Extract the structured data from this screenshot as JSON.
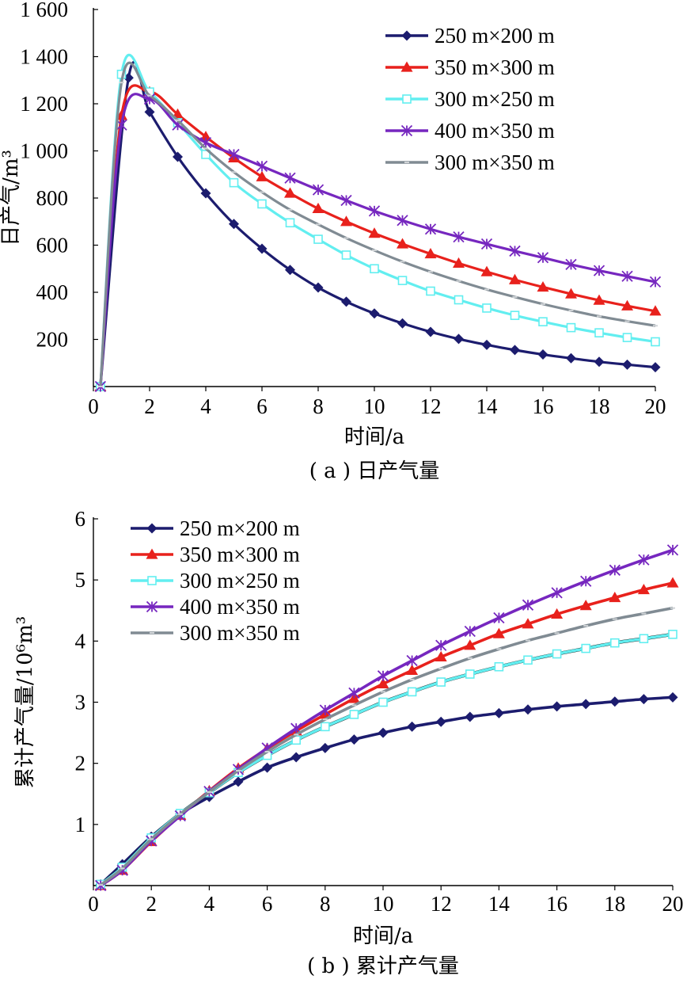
{
  "chart_data": [
    {
      "type": "line",
      "panel": "a",
      "caption": "( a ) 日产气量",
      "xlabel": "时间/a",
      "ylabel": "日产气/m³",
      "xlim": [
        0,
        20
      ],
      "ylim": [
        0,
        1600
      ],
      "xticks": [
        0,
        2,
        4,
        6,
        8,
        10,
        12,
        14,
        16,
        18,
        20
      ],
      "yticks": [
        200,
        400,
        600,
        800,
        1000,
        1200,
        1400,
        1600
      ],
      "ytick_labels": [
        "200",
        "400",
        "600",
        "800",
        "1 000",
        "1 200",
        "1 400",
        "1 600"
      ],
      "legend_position": "top-right",
      "grid": false,
      "series": [
        {
          "name": "250 m×200 m",
          "color": "#1c1c6e",
          "marker": "diamond",
          "x": [
            0.25,
            1.25,
            2,
            3,
            4,
            5,
            6,
            7,
            8,
            9,
            10,
            11,
            12,
            13,
            14,
            15,
            16,
            17,
            18,
            19,
            20
          ],
          "y": [
            0,
            1310,
            1165,
            975,
            820,
            690,
            585,
            495,
            420,
            360,
            310,
            268,
            232,
            202,
            177,
            155,
            136,
            120,
            105,
            93,
            82
          ]
        },
        {
          "name": "350 m×300 m",
          "color": "#e8211c",
          "marker": "triangle",
          "x": [
            0.25,
            1,
            2,
            3,
            4,
            5,
            6,
            7,
            8,
            9,
            10,
            11,
            12,
            13,
            14,
            15,
            16,
            17,
            18,
            19,
            20
          ],
          "y": [
            0,
            1150,
            1250,
            1155,
            1060,
            970,
            890,
            820,
            755,
            700,
            650,
            605,
            563,
            523,
            487,
            453,
            422,
            393,
            366,
            342,
            320
          ]
        },
        {
          "name": "300 m×250 m",
          "color": "#62eef0",
          "marker": "square",
          "x": [
            0.25,
            1,
            2,
            3,
            4,
            5,
            6,
            7,
            8,
            9,
            10,
            11,
            12,
            13,
            14,
            15,
            16,
            17,
            18,
            19,
            20
          ],
          "y": [
            0,
            1325,
            1250,
            1120,
            985,
            865,
            775,
            695,
            625,
            558,
            500,
            450,
            405,
            368,
            333,
            302,
            275,
            250,
            228,
            208,
            190
          ]
        },
        {
          "name": "400 m×350 m",
          "color": "#7627bf",
          "marker": "star",
          "x": [
            0.25,
            1,
            2,
            3,
            4,
            5,
            6,
            7,
            8,
            9,
            10,
            11,
            12,
            13,
            14,
            15,
            16,
            17,
            18,
            19,
            20
          ],
          "y": [
            0,
            1110,
            1220,
            1110,
            1035,
            985,
            935,
            885,
            835,
            790,
            745,
            705,
            668,
            635,
            605,
            575,
            547,
            518,
            492,
            468,
            444
          ]
        },
        {
          "name": "300 m×350 m",
          "color": "#808b93",
          "marker": "dash",
          "x": [
            0.25,
            1,
            2,
            3,
            4,
            5,
            6,
            7,
            8,
            9,
            10,
            11,
            12,
            13,
            14,
            15,
            16,
            17,
            18,
            19,
            20
          ],
          "y": [
            0,
            1290,
            1235,
            1130,
            1010,
            910,
            825,
            750,
            688,
            630,
            578,
            530,
            487,
            448,
            412,
            380,
            350,
            323,
            298,
            277,
            258
          ]
        }
      ]
    },
    {
      "type": "line",
      "panel": "b",
      "caption": "( b ) 累计产气量",
      "xlabel": "时间/a",
      "ylabel": "累计产气量/10⁶m³",
      "xlim": [
        0,
        20
      ],
      "ylim": [
        0,
        6
      ],
      "xticks": [
        0,
        2,
        4,
        6,
        8,
        10,
        12,
        14,
        16,
        18,
        20
      ],
      "yticks": [
        1,
        2,
        3,
        4,
        5,
        6
      ],
      "ytick_labels": [
        "1",
        "2",
        "3",
        "4",
        "5",
        "6"
      ],
      "legend_position": "top-left",
      "grid": false,
      "series": [
        {
          "name": "250 m×200 m",
          "color": "#1c1c6e",
          "marker": "diamond",
          "x": [
            0.25,
            1,
            2,
            3,
            4,
            5,
            6,
            7,
            8,
            9,
            10,
            11,
            12,
            13,
            14,
            15,
            16,
            17,
            18,
            19,
            20
          ],
          "y": [
            0.02,
            0.35,
            0.8,
            1.17,
            1.45,
            1.7,
            1.93,
            2.1,
            2.25,
            2.39,
            2.5,
            2.6,
            2.68,
            2.76,
            2.82,
            2.88,
            2.93,
            2.97,
            3.01,
            3.05,
            3.08
          ]
        },
        {
          "name": "350 m×300 m",
          "color": "#e8211c",
          "marker": "triangle",
          "x": [
            0.25,
            1,
            2,
            3,
            4,
            5,
            6,
            7,
            8,
            9,
            10,
            11,
            12,
            13,
            14,
            15,
            16,
            17,
            18,
            19,
            20
          ],
          "y": [
            0.0,
            0.25,
            0.72,
            1.15,
            1.55,
            1.92,
            2.24,
            2.53,
            2.8,
            3.06,
            3.3,
            3.52,
            3.74,
            3.93,
            4.12,
            4.28,
            4.44,
            4.58,
            4.71,
            4.84,
            4.95
          ]
        },
        {
          "name": "300 m×250 m",
          "color": "#62eef0",
          "marker": "square",
          "x": [
            0.25,
            1,
            2,
            3,
            4,
            5,
            6,
            7,
            8,
            9,
            10,
            11,
            12,
            13,
            14,
            15,
            16,
            17,
            18,
            19,
            20
          ],
          "y": [
            0.02,
            0.3,
            0.78,
            1.18,
            1.52,
            1.85,
            2.13,
            2.38,
            2.6,
            2.8,
            3.0,
            3.17,
            3.33,
            3.46,
            3.58,
            3.69,
            3.79,
            3.88,
            3.97,
            4.04,
            4.11
          ]
        },
        {
          "name": "400 m×350 m",
          "color": "#7627bf",
          "marker": "star",
          "x": [
            0.25,
            1,
            2,
            3,
            4,
            5,
            6,
            7,
            8,
            9,
            10,
            11,
            12,
            13,
            14,
            15,
            16,
            17,
            18,
            19,
            20
          ],
          "y": [
            0.0,
            0.25,
            0.73,
            1.14,
            1.54,
            1.9,
            2.25,
            2.57,
            2.87,
            3.15,
            3.43,
            3.68,
            3.93,
            4.16,
            4.38,
            4.59,
            4.79,
            4.98,
            5.16,
            5.33,
            5.49
          ]
        },
        {
          "name": "300 m×350 m",
          "color": "#808b93",
          "marker": "dash",
          "x": [
            0.25,
            1,
            2,
            3,
            4,
            5,
            6,
            7,
            8,
            9,
            10,
            11,
            12,
            13,
            14,
            15,
            16,
            17,
            18,
            19,
            20
          ],
          "y": [
            0.01,
            0.28,
            0.76,
            1.17,
            1.53,
            1.88,
            2.19,
            2.47,
            2.72,
            2.95,
            3.17,
            3.37,
            3.55,
            3.72,
            3.87,
            4.01,
            4.13,
            4.25,
            4.36,
            4.45,
            4.54
          ]
        }
      ]
    }
  ]
}
